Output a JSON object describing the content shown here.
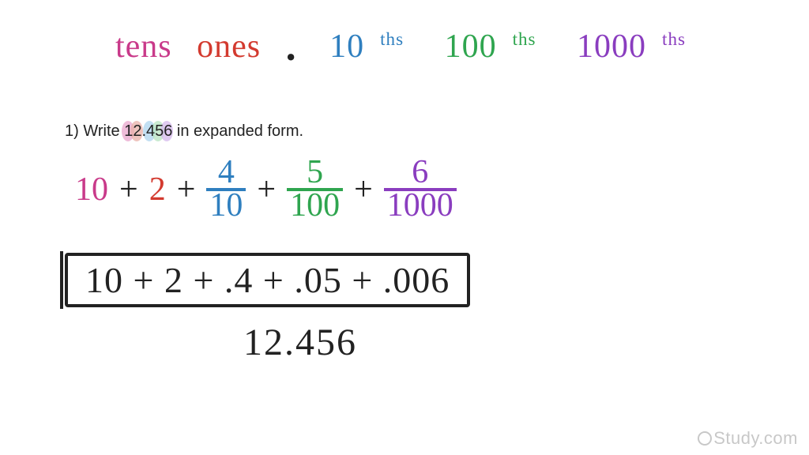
{
  "colors": {
    "tens": "#c93a8a",
    "ones": "#d33a2f",
    "tenths": "#2f7fbf",
    "hundredths": "#2fa54f",
    "thousandths": "#8a3dbf",
    "ink": "#222222",
    "highlight_tens": "#e8a5cc",
    "highlight_ones": "#e8b0a8",
    "highlight_tenths": "#aed4ee",
    "highlight_hund": "#b8e4c2",
    "highlight_thou": "#d4b8ec",
    "watermark": "#c8c8c8",
    "bg": "#ffffff"
  },
  "fonts": {
    "hand": "Comic Sans MS",
    "print": "Arial"
  },
  "header": {
    "tens": "tens",
    "ones": "ones",
    "dot": ".",
    "tenths_base": "10",
    "tenths_sup": "ths",
    "hund_base": "100",
    "hund_sup": "ths",
    "thou_base": "1000",
    "thou_sup": "ths",
    "fontsize": 42
  },
  "question": {
    "prefix": "1) Write ",
    "number": "12.456",
    "suffix": " in expanded form.",
    "fontsize": 20
  },
  "expanded_color": {
    "plus": "+",
    "terms": [
      {
        "kind": "int",
        "value": "10",
        "colorKey": "tens"
      },
      {
        "kind": "int",
        "value": "2",
        "colorKey": "ones"
      },
      {
        "kind": "frac",
        "num": "4",
        "den": "10",
        "colorKey": "tenths"
      },
      {
        "kind": "frac",
        "num": "5",
        "den": "100",
        "colorKey": "hundredths"
      },
      {
        "kind": "frac",
        "num": "6",
        "den": "1000",
        "colorKey": "thousandths"
      }
    ],
    "fontsize": 42
  },
  "expanded_decimal": {
    "text": "10 + 2 + .4 + .05 + .006",
    "fontsize": 46
  },
  "result": {
    "text": "12.456",
    "fontsize": 48
  },
  "watermark": {
    "text": "Study.com",
    "fontsize": 22
  }
}
